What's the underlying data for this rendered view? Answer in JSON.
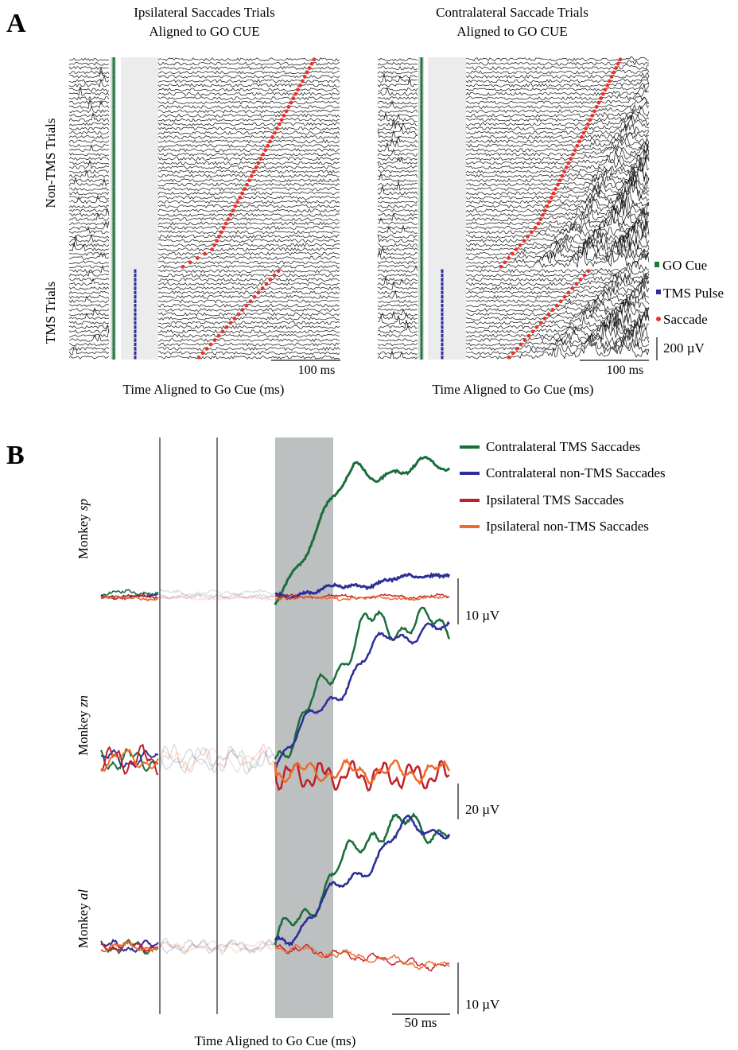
{
  "panel_a": {
    "letter": "A",
    "left_title_line1": "Ipsilateral Saccades Trials",
    "left_title_line2": "Aligned to GO CUE",
    "right_title_line1": "Contralateral Saccade Trials",
    "right_title_line2": "Aligned to GO CUE",
    "row_label_non_tms": "Non-TMS Trials",
    "row_label_tms": "TMS Trials",
    "time_scale_left": "100 ms",
    "time_scale_right": "100 ms",
    "xlabel_left": "Time Aligned to Go Cue (ms)",
    "xlabel_right": "Time Aligned to Go Cue (ms)",
    "legend": [
      {
        "label": "GO Cue",
        "color": "#1a7a3c"
      },
      {
        "label": "TMS Pulse",
        "color": "#2e2e9a"
      },
      {
        "label": "Saccade",
        "color": "#e8332a"
      }
    ],
    "voltage_scale": "200 µV"
  },
  "panel_b": {
    "letter": "B",
    "legend": [
      {
        "label": "Contralateral TMS Saccades",
        "color": "#1a6e3a"
      },
      {
        "label": "Contralateral non-TMS Saccades",
        "color": "#2e2e9a"
      },
      {
        "label": "Ipsilateral TMS Saccades",
        "color": "#c0202a"
      },
      {
        "label": "Ipsilateral non-TMS Saccades",
        "color": "#ee6a2a"
      }
    ],
    "monkeys": [
      {
        "prefix": "Monkey ",
        "name": "sp",
        "scale": "10 µV"
      },
      {
        "prefix": "Monkey ",
        "name": "zn",
        "scale": "20 µV"
      },
      {
        "prefix": "Monkey ",
        "name": "al",
        "scale": "10 µV"
      }
    ],
    "time_scale": "50 ms",
    "xlabel": "Time Aligned to Go Cue (ms)"
  },
  "chart_data": [
    {
      "type": "line",
      "title": "Ipsilateral Saccades Trials Aligned to GO CUE",
      "xlabel": "Time Aligned to Go Cue (ms)",
      "description_series": [
        {
          "name": "GO Cue",
          "color": "#1a7a3c"
        },
        {
          "name": "TMS Pulse",
          "color": "#2e2e9a"
        },
        {
          "name": "Saccade",
          "color": "#e8332a"
        }
      ]
    },
    {
      "type": "line",
      "title": "Contralateral Saccade Trials Aligned to GO CUE",
      "xlabel": "Time Aligned to Go Cue (ms)",
      "description_series": [
        {
          "name": "GO Cue",
          "color": "#1a7a3c"
        },
        {
          "name": "TMS Pulse",
          "color": "#2e2e9a"
        },
        {
          "name": "Saccade",
          "color": "#e8332a"
        }
      ]
    },
    {
      "type": "line",
      "xlabel": "Time Aligned to Go Cue (ms)",
      "series": [
        {
          "name": "Contralateral TMS Saccades",
          "color": "#1a6e3a"
        },
        {
          "name": "Contralateral non-TMS Saccades",
          "color": "#2e2e9a"
        },
        {
          "name": "Ipsilateral TMS Saccades",
          "color": "#c0202a"
        },
        {
          "name": "Ipsilateral non-TMS Saccades",
          "color": "#ee6a2a"
        }
      ]
    }
  ]
}
